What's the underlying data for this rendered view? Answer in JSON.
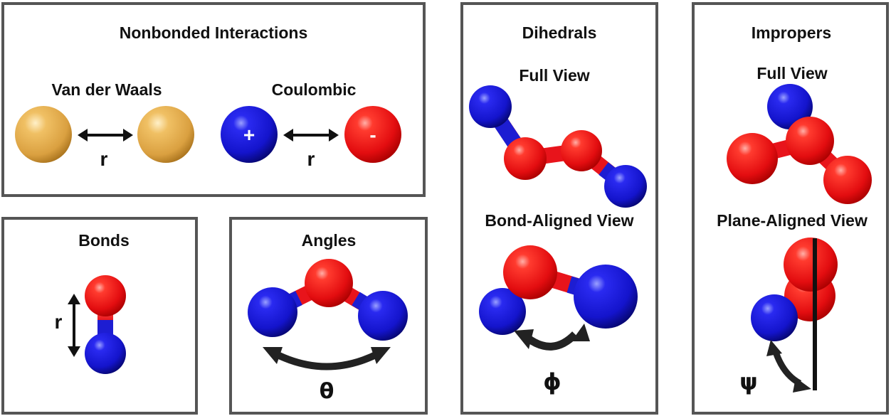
{
  "colors": {
    "frame": "#555555",
    "oxygen_red": "#e8141b",
    "nitrogen_blue": "#1d1dd2",
    "vdw_gold": "#e3aa48",
    "arrow": "#111111"
  },
  "panels": {
    "nonbonded": {
      "title": "Nonbonded Interactions",
      "vdw_label": "Van der Waals",
      "vdw_distance": "r",
      "coulombic_label": "Coulombic",
      "coulombic_distance": "r",
      "positive_sign": "+",
      "negative_sign": "-"
    },
    "bonds": {
      "title": "Bonds",
      "distance": "r"
    },
    "angles": {
      "title": "Angles",
      "angle_symbol": "θ"
    },
    "dihedrals": {
      "title": "Dihedrals",
      "full_view_label": "Full View",
      "aligned_view_label": "Bond-Aligned View",
      "angle_symbol": "ϕ"
    },
    "impropers": {
      "title": "Impropers",
      "full_view_label": "Full View",
      "aligned_view_label": "Plane-Aligned View",
      "angle_symbol": "ψ"
    }
  }
}
